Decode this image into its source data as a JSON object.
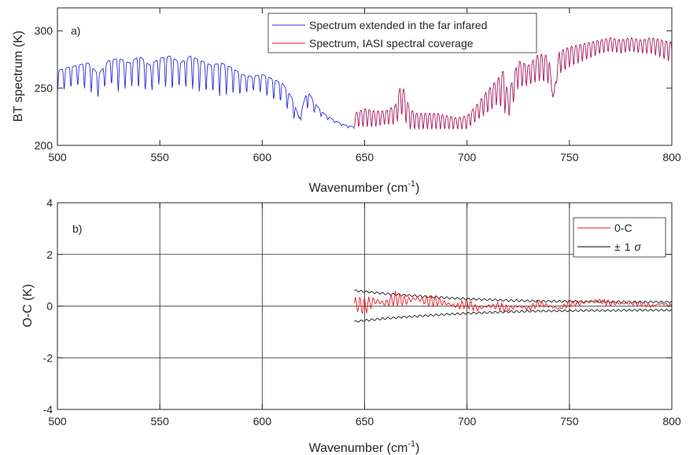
{
  "chart_data": [
    {
      "type": "line",
      "panel_label": "a)",
      "xlabel": "Wavenumber (cm",
      "xlabel_sup": "-1",
      "xlabel_close": ")",
      "ylabel": "BT spectrum (K)",
      "xlim": [
        500,
        800
      ],
      "ylim": [
        200,
        320
      ],
      "xticks": [
        500,
        550,
        600,
        650,
        700,
        750,
        800
      ],
      "yticks": [
        200,
        250,
        300
      ],
      "grid": false,
      "legend_position": "top-center",
      "series": [
        {
          "name": "Spectrum extended in the far infared",
          "color": "#2b2bd6",
          "x": [
            500,
            505,
            510,
            515,
            520,
            525,
            530,
            535,
            540,
            545,
            550,
            555,
            560,
            565,
            570,
            575,
            580,
            585,
            590,
            595,
            600,
            605,
            610,
            615,
            618,
            622,
            626,
            630,
            635,
            640,
            645
          ],
          "y": [
            265,
            268,
            270,
            272,
            262,
            274,
            276,
            272,
            278,
            270,
            276,
            278,
            272,
            278,
            274,
            270,
            272,
            268,
            262,
            260,
            262,
            258,
            254,
            240,
            224,
            248,
            236,
            228,
            222,
            218,
            216
          ],
          "env_low": [
            246,
            250,
            252,
            248,
            242,
            256,
            246,
            252,
            250,
            246,
            254,
            248,
            252,
            250,
            246,
            248,
            242,
            246,
            244,
            248,
            246,
            240,
            238,
            224,
            220,
            232,
            228,
            224,
            220,
            216,
            214
          ]
        },
        {
          "name": "Spectrum, IASI spectral coverage",
          "color": "#a4165a",
          "x": [
            645,
            650,
            655,
            660,
            665,
            668,
            672,
            675,
            680,
            685,
            690,
            695,
            700,
            705,
            710,
            715,
            718,
            720,
            725,
            730,
            735,
            740,
            742,
            745,
            750,
            755,
            760,
            765,
            770,
            775,
            780,
            785,
            790,
            795,
            800
          ],
          "y": [
            228,
            232,
            230,
            230,
            235,
            255,
            232,
            228,
            228,
            228,
            226,
            224,
            226,
            236,
            248,
            258,
            266,
            244,
            274,
            270,
            280,
            278,
            240,
            282,
            286,
            288,
            290,
            292,
            294,
            292,
            294,
            292,
            294,
            292,
            290
          ],
          "env_low": [
            216,
            216,
            216,
            218,
            218,
            226,
            214,
            214,
            214,
            214,
            214,
            214,
            214,
            222,
            228,
            236,
            230,
            222,
            250,
            252,
            256,
            254,
            244,
            262,
            268,
            272,
            276,
            280,
            282,
            280,
            282,
            280,
            280,
            276,
            272
          ]
        }
      ]
    },
    {
      "type": "line",
      "panel_label": "b)",
      "xlabel": "Wavenumber (cm",
      "xlabel_sup": "-1",
      "xlabel_close": ")",
      "ylabel": "O-C (K)",
      "xlim": [
        500,
        800
      ],
      "ylim": [
        -4,
        4
      ],
      "xticks": [
        500,
        550,
        600,
        650,
        700,
        750,
        800
      ],
      "yticks": [
        -4,
        -2,
        0,
        2,
        4
      ],
      "grid": true,
      "legend_position": "top-right",
      "series": [
        {
          "name": "0-C",
          "color": "#e8171c",
          "x": [
            645,
            650,
            655,
            660,
            665,
            670,
            675,
            680,
            685,
            690,
            695,
            700,
            705,
            710,
            715,
            720,
            725,
            730,
            735,
            740,
            745,
            750,
            755,
            760,
            765,
            770,
            775,
            780,
            785,
            790,
            795,
            800
          ],
          "y": [
            0.1,
            0.0,
            0.2,
            0.1,
            0.3,
            0.2,
            0.3,
            0.2,
            0.2,
            0.1,
            0.0,
            0.1,
            -0.1,
            0.0,
            0.0,
            -0.1,
            0.0,
            -0.1,
            0.1,
            0.0,
            -0.1,
            0.1,
            0.1,
            0.2,
            0.2,
            0.1,
            0.1,
            0.1,
            0.1,
            0.0,
            0.1,
            0.0
          ],
          "amplitude": [
            0.4,
            0.35,
            0.35,
            0.3,
            0.3,
            0.25,
            0.25,
            0.25,
            0.22,
            0.22,
            0.2,
            0.2,
            0.18,
            0.18,
            0.16,
            0.16,
            0.15,
            0.15,
            0.14,
            0.14,
            0.13,
            0.13,
            0.12,
            0.12,
            0.11,
            0.11,
            0.1,
            0.1,
            0.1,
            0.1,
            0.1,
            0.1
          ]
        },
        {
          "name": "± 1 σ",
          "legend_pm": "±",
          "legend_one": "1",
          "legend_sigma": "σ",
          "color": "#000000",
          "x": [
            645,
            650,
            660,
            670,
            680,
            690,
            700,
            710,
            720,
            730,
            740,
            750,
            760,
            770,
            780,
            790,
            800
          ],
          "upper": [
            0.6,
            0.56,
            0.48,
            0.42,
            0.37,
            0.32,
            0.28,
            0.25,
            0.22,
            0.2,
            0.19,
            0.18,
            0.17,
            0.17,
            0.16,
            0.16,
            0.16
          ],
          "lower": [
            -0.6,
            -0.56,
            -0.48,
            -0.42,
            -0.37,
            -0.32,
            -0.28,
            -0.25,
            -0.22,
            -0.2,
            -0.19,
            -0.18,
            -0.17,
            -0.17,
            -0.16,
            -0.16,
            -0.16
          ]
        }
      ]
    }
  ]
}
